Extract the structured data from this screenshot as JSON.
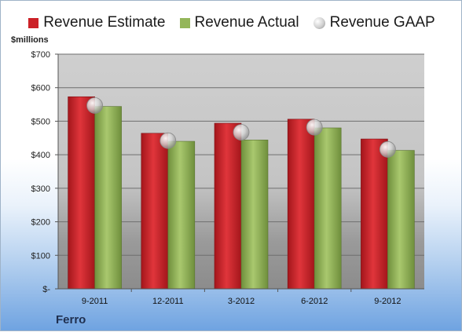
{
  "chart_data": {
    "type": "bar",
    "categories": [
      "9-2011",
      "12-2011",
      "3-2012",
      "6-2012",
      "9-2012"
    ],
    "series": [
      {
        "name": "Revenue Estimate",
        "type": "bar",
        "color": "#cc2127",
        "values": [
          573,
          464,
          494,
          506,
          447
        ]
      },
      {
        "name": "Revenue Actual",
        "type": "bar",
        "color": "#94b65a",
        "values": [
          544,
          440,
          444,
          480,
          413
        ]
      },
      {
        "name": "Revenue GAAP",
        "type": "marker",
        "color": "#c8c8c8",
        "values": [
          547,
          442,
          467,
          482,
          416
        ]
      }
    ],
    "ylabel": "$millions",
    "ylim": [
      0,
      700
    ],
    "yticks": [
      0,
      100,
      200,
      300,
      400,
      500,
      600,
      700
    ],
    "ytick_labels": [
      "$-",
      "$100",
      "$200",
      "$300",
      "$400",
      "$500",
      "$600",
      "$700"
    ],
    "grid": true,
    "legend_position": "top"
  },
  "footer": {
    "company": "Ferro"
  }
}
